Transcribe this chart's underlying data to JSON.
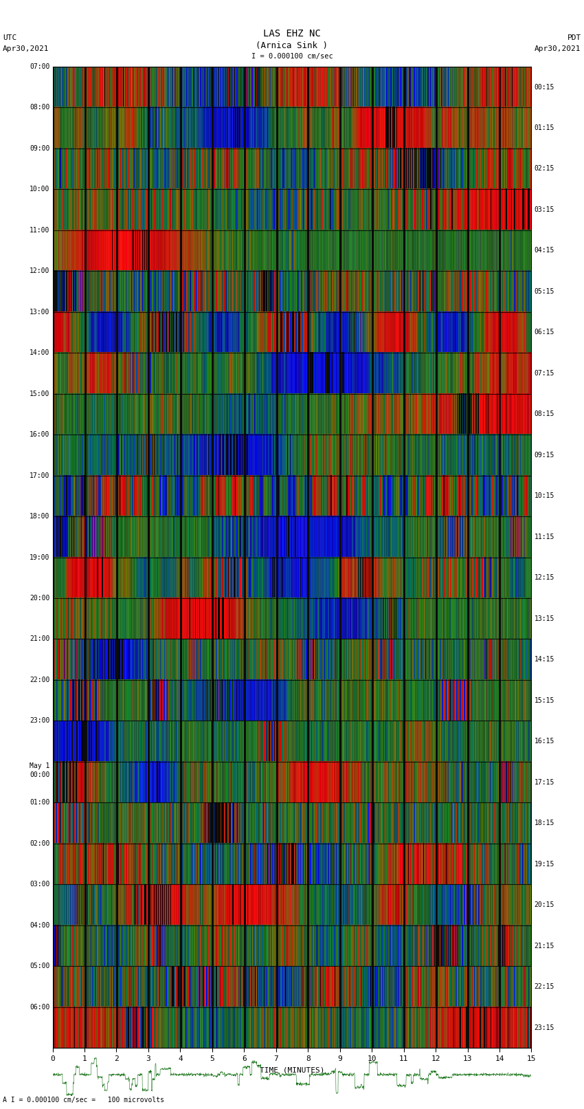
{
  "title_line1": "LAS EHZ NC",
  "title_line2": "(Arnica Sink )",
  "scale_label": "I = 0.000100 cm/sec",
  "left_label_top": "UTC",
  "left_label_date": "Apr30,2021",
  "right_label_top": "PDT",
  "right_label_date": "Apr30,2021",
  "bottom_label": "TIME (MINUTES)",
  "bottom_note": "A I = 0.000100 cm/sec =   100 microvolts",
  "utc_times": [
    "07:00",
    "08:00",
    "09:00",
    "10:00",
    "11:00",
    "12:00",
    "13:00",
    "14:00",
    "15:00",
    "16:00",
    "17:00",
    "18:00",
    "19:00",
    "20:00",
    "21:00",
    "22:00",
    "23:00",
    "May 1\n00:00",
    "01:00",
    "02:00",
    "03:00",
    "04:00",
    "05:00",
    "06:00"
  ],
  "pdt_times": [
    "00:15",
    "01:15",
    "02:15",
    "03:15",
    "04:15",
    "05:15",
    "06:15",
    "07:15",
    "08:15",
    "09:15",
    "10:15",
    "11:15",
    "12:15",
    "13:15",
    "14:15",
    "15:15",
    "16:15",
    "17:15",
    "18:15",
    "19:15",
    "20:15",
    "21:15",
    "22:15",
    "23:15"
  ],
  "n_rows": 24,
  "n_cols": 700,
  "x_ticks": [
    0,
    1,
    2,
    3,
    4,
    5,
    6,
    7,
    8,
    9,
    10,
    11,
    12,
    13,
    14,
    15
  ],
  "background_color": "#ffffff",
  "figsize": [
    8.5,
    16.13
  ]
}
